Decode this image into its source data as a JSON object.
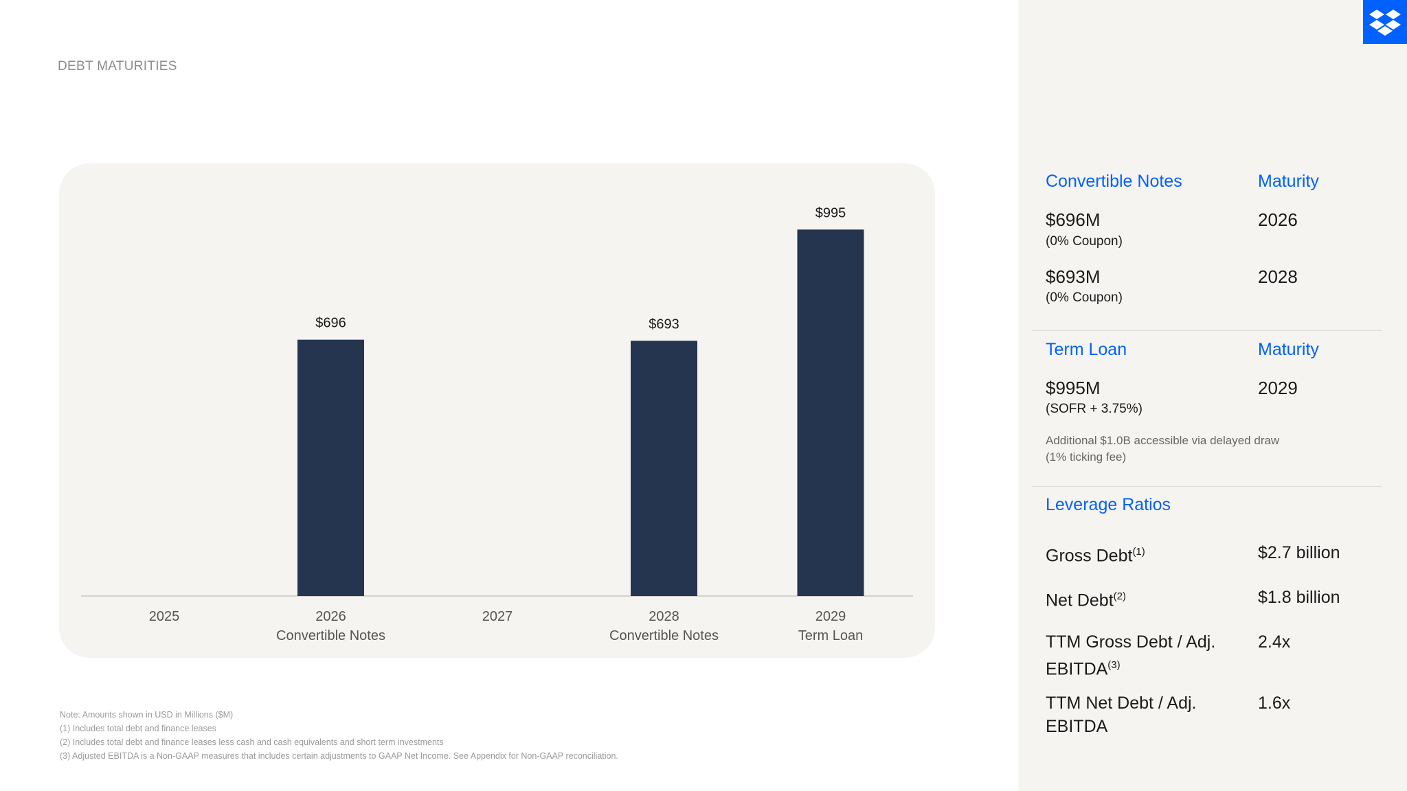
{
  "page": {
    "title": "DEBT MATURITIES"
  },
  "chart_data": {
    "type": "bar",
    "categories": [
      "2025",
      "2026",
      "2027",
      "2028",
      "2029"
    ],
    "category_sublabels": [
      "",
      "Convertible Notes",
      "",
      "Convertible Notes",
      "Term Loan"
    ],
    "values": [
      0,
      696,
      0,
      693,
      995
    ],
    "data_labels": [
      "",
      "$696",
      "",
      "$693",
      "$995"
    ],
    "title": "",
    "xlabel": "",
    "ylabel": "",
    "ylim": [
      0,
      1100
    ],
    "grid": false,
    "bar_color": "#253550"
  },
  "footnotes": [
    "Note: Amounts shown in USD in Millions ($M)",
    "(1) Includes total debt and finance leases",
    "(2) Includes total debt and finance leases less cash and cash equivalents and short term investments",
    "(3) Adjusted EBITDA is a Non-GAAP measures that includes certain adjustments to GAAP Net Income. See Appendix for Non-GAAP reconciliation."
  ],
  "panel": {
    "convertible": {
      "heading": "Convertible Notes",
      "maturity_heading": "Maturity",
      "items": [
        {
          "amount": "$696M",
          "detail": "(0% Coupon)",
          "maturity": "2026"
        },
        {
          "amount": "$693M",
          "detail": "(0% Coupon)",
          "maturity": "2028"
        }
      ]
    },
    "term_loan": {
      "heading": "Term Loan",
      "maturity_heading": "Maturity",
      "amount": "$995M",
      "detail": "(SOFR + 3.75%)",
      "maturity": "2029",
      "note_line1": "Additional $1.0B accessible via delayed draw",
      "note_line2": "(1% ticking fee)"
    },
    "leverage": {
      "heading": "Leverage Ratios",
      "rows": [
        {
          "label": "Gross Debt",
          "sup": "(1)",
          "value": "$2.7 billion"
        },
        {
          "label": "Net Debt",
          "sup": "(2)",
          "value": "$1.8 billion"
        },
        {
          "label_line1": "TTM Gross Debt / Adj.",
          "label_line2": "EBITDA",
          "sup": "(3)",
          "value": "2.4x"
        },
        {
          "label_line1": "TTM Net Debt / Adj.",
          "label_line2": "EBITDA",
          "value": "1.6x"
        }
      ]
    }
  },
  "colors": {
    "accent": "#0061fe",
    "bar": "#253550",
    "panel_bg": "#f5f4f1"
  },
  "icons": {
    "logo": "dropbox-logo-icon"
  }
}
